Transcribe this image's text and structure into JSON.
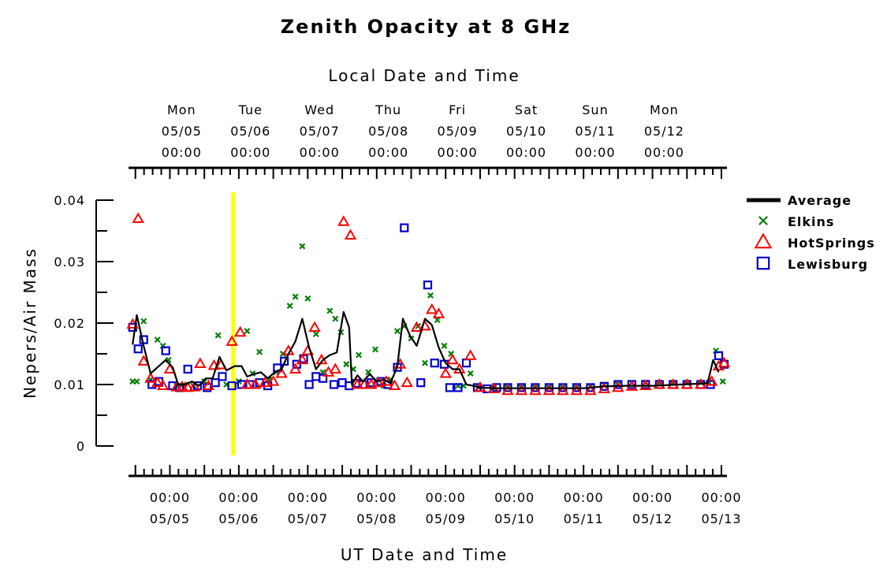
{
  "chart_data": {
    "type": "scatter",
    "title": "Zenith Opacity at 8 GHz",
    "xlabel_top": "Local Date and Time",
    "xlabel": "UT Date and Time",
    "ylabel": "Nepers/Air Mass",
    "ylim": [
      0,
      0.04
    ],
    "y_ticks": [
      {
        "value": 0,
        "label": "0"
      },
      {
        "value": 0.01,
        "label": "0.01"
      },
      {
        "value": 0.02,
        "label": "0.02"
      },
      {
        "value": 0.03,
        "label": "0.03"
      },
      {
        "value": 0.04,
        "label": "0.04"
      }
    ],
    "xlim_days": [
      4.4,
      13.08
    ],
    "x_ticks_bottom": [
      {
        "day": 5,
        "time": "00:00",
        "date": "05/05"
      },
      {
        "day": 6,
        "time": "00:00",
        "date": "05/06"
      },
      {
        "day": 7,
        "time": "00:00",
        "date": "05/07"
      },
      {
        "day": 8,
        "time": "00:00",
        "date": "05/08"
      },
      {
        "day": 9,
        "time": "00:00",
        "date": "05/09"
      },
      {
        "day": 10,
        "time": "00:00",
        "date": "05/10"
      },
      {
        "day": 11,
        "time": "00:00",
        "date": "05/11"
      },
      {
        "day": 12,
        "time": "00:00",
        "date": "05/12"
      },
      {
        "day": 13,
        "time": "00:00",
        "date": "05/13"
      }
    ],
    "x_ticks_top": [
      {
        "day": 5.17,
        "weekday": "Mon",
        "date": "05/05",
        "time": "00:00"
      },
      {
        "day": 6.17,
        "weekday": "Tue",
        "date": "05/06",
        "time": "00:00"
      },
      {
        "day": 7.17,
        "weekday": "Wed",
        "date": "05/07",
        "time": "00:00"
      },
      {
        "day": 8.17,
        "weekday": "Thu",
        "date": "05/08",
        "time": "00:00"
      },
      {
        "day": 9.17,
        "weekday": "Fri",
        "date": "05/09",
        "time": "00:00"
      },
      {
        "day": 10.17,
        "weekday": "Sat",
        "date": "05/10",
        "time": "00:00"
      },
      {
        "day": 11.17,
        "weekday": "Sun",
        "date": "05/11",
        "time": "00:00"
      },
      {
        "day": 12.17,
        "weekday": "Mon",
        "date": "05/12",
        "time": "00:00"
      }
    ],
    "marker_day": 5.92,
    "marker_color": "#ffff00",
    "legend_position": "right",
    "series": [
      {
        "name": "Average",
        "style": "line",
        "color": "#000000",
        "points": [
          [
            4.46,
            0.0165
          ],
          [
            4.52,
            0.0213
          ],
          [
            4.62,
            0.0163
          ],
          [
            4.72,
            0.0118
          ],
          [
            4.82,
            0.0128
          ],
          [
            4.94,
            0.014
          ],
          [
            5.04,
            0.0128
          ],
          [
            5.12,
            0.01
          ],
          [
            5.22,
            0.01
          ],
          [
            5.32,
            0.0105
          ],
          [
            5.42,
            0.0098
          ],
          [
            5.52,
            0.011
          ],
          [
            5.62,
            0.011
          ],
          [
            5.72,
            0.0145
          ],
          [
            5.82,
            0.0123
          ],
          [
            5.94,
            0.013
          ],
          [
            6.04,
            0.013
          ],
          [
            6.12,
            0.0113
          ],
          [
            6.22,
            0.0117
          ],
          [
            6.32,
            0.012
          ],
          [
            6.42,
            0.011
          ],
          [
            6.52,
            0.012
          ],
          [
            6.62,
            0.0125
          ],
          [
            6.72,
            0.015
          ],
          [
            6.82,
            0.017
          ],
          [
            6.92,
            0.0207
          ],
          [
            7.02,
            0.016
          ],
          [
            7.12,
            0.0125
          ],
          [
            7.22,
            0.014
          ],
          [
            7.32,
            0.0148
          ],
          [
            7.42,
            0.0152
          ],
          [
            7.52,
            0.0218
          ],
          [
            7.6,
            0.0193
          ],
          [
            7.64,
            0.01
          ],
          [
            7.72,
            0.0115
          ],
          [
            7.8,
            0.0105
          ],
          [
            7.9,
            0.0117
          ],
          [
            8.0,
            0.0105
          ],
          [
            8.1,
            0.0108
          ],
          [
            8.2,
            0.0102
          ],
          [
            8.3,
            0.013
          ],
          [
            8.38,
            0.0207
          ],
          [
            8.48,
            0.018
          ],
          [
            8.58,
            0.0163
          ],
          [
            8.7,
            0.0207
          ],
          [
            8.8,
            0.0197
          ],
          [
            8.9,
            0.016
          ],
          [
            9.0,
            0.0135
          ],
          [
            9.1,
            0.0125
          ],
          [
            9.2,
            0.0125
          ],
          [
            9.3,
            0.01
          ],
          [
            9.4,
            0.0098
          ],
          [
            9.5,
            0.0095
          ],
          [
            9.7,
            0.0094
          ],
          [
            10.0,
            0.0094
          ],
          [
            10.5,
            0.0094
          ],
          [
            11.0,
            0.0094
          ],
          [
            11.3,
            0.0097
          ],
          [
            11.6,
            0.0098
          ],
          [
            12.0,
            0.0098
          ],
          [
            12.4,
            0.01
          ],
          [
            12.8,
            0.0102
          ],
          [
            12.88,
            0.014
          ],
          [
            12.96,
            0.012
          ]
        ]
      },
      {
        "name": "Elkins",
        "style": "x",
        "color": "#008000",
        "points": [
          [
            4.46,
            0.0105
          ],
          [
            4.52,
            0.0105
          ],
          [
            4.62,
            0.0203
          ],
          [
            4.72,
            0.0108
          ],
          [
            4.82,
            0.0173
          ],
          [
            4.9,
            0.0163
          ],
          [
            4.98,
            0.014
          ],
          [
            5.1,
            0.0098
          ],
          [
            5.2,
            0.01
          ],
          [
            5.34,
            0.0098
          ],
          [
            5.5,
            0.0105
          ],
          [
            5.7,
            0.018
          ],
          [
            5.82,
            0.01
          ],
          [
            6.0,
            0.0105
          ],
          [
            6.12,
            0.0187
          ],
          [
            6.2,
            0.0118
          ],
          [
            6.3,
            0.0153
          ],
          [
            6.44,
            0.0108
          ],
          [
            6.54,
            0.012
          ],
          [
            6.64,
            0.015
          ],
          [
            6.74,
            0.0228
          ],
          [
            6.82,
            0.0243
          ],
          [
            6.92,
            0.0325
          ],
          [
            7.0,
            0.024
          ],
          [
            7.12,
            0.0182
          ],
          [
            7.22,
            0.012
          ],
          [
            7.32,
            0.022
          ],
          [
            7.4,
            0.0207
          ],
          [
            7.48,
            0.0185
          ],
          [
            7.56,
            0.0133
          ],
          [
            7.66,
            0.0125
          ],
          [
            7.74,
            0.0148
          ],
          [
            7.88,
            0.012
          ],
          [
            7.98,
            0.0157
          ],
          [
            8.1,
            0.0098
          ],
          [
            8.2,
            0.0108
          ],
          [
            8.3,
            0.0187
          ],
          [
            8.4,
            0.0195
          ],
          [
            8.5,
            0.0175
          ],
          [
            8.6,
            0.0195
          ],
          [
            8.7,
            0.0135
          ],
          [
            8.78,
            0.0245
          ],
          [
            8.88,
            0.0205
          ],
          [
            8.98,
            0.0163
          ],
          [
            9.08,
            0.015
          ],
          [
            9.18,
            0.0098
          ],
          [
            9.26,
            0.0098
          ],
          [
            9.36,
            0.0118
          ],
          [
            9.48,
            0.0095
          ],
          [
            9.7,
            0.0095
          ],
          [
            9.9,
            0.0095
          ],
          [
            10.1,
            0.0095
          ],
          [
            10.3,
            0.0095
          ],
          [
            10.5,
            0.0095
          ],
          [
            10.7,
            0.0095
          ],
          [
            10.9,
            0.0095
          ],
          [
            11.1,
            0.0097
          ],
          [
            11.3,
            0.01
          ],
          [
            11.5,
            0.01
          ],
          [
            11.7,
            0.0103
          ],
          [
            11.9,
            0.0103
          ],
          [
            12.1,
            0.0103
          ],
          [
            12.3,
            0.0103
          ],
          [
            12.5,
            0.0103
          ],
          [
            12.7,
            0.0103
          ],
          [
            12.82,
            0.0103
          ],
          [
            12.92,
            0.0155
          ],
          [
            13.02,
            0.0105
          ]
        ]
      },
      {
        "name": "HotSprings",
        "style": "triangle",
        "color": "#ff0000",
        "points": [
          [
            4.46,
            0.0198
          ],
          [
            4.54,
            0.037
          ],
          [
            4.62,
            0.0138
          ],
          [
            4.72,
            0.011
          ],
          [
            4.82,
            0.0103
          ],
          [
            4.9,
            0.0098
          ],
          [
            5.0,
            0.0125
          ],
          [
            5.1,
            0.0096
          ],
          [
            5.18,
            0.0096
          ],
          [
            5.26,
            0.0095
          ],
          [
            5.36,
            0.0096
          ],
          [
            5.44,
            0.0134
          ],
          [
            5.56,
            0.0098
          ],
          [
            5.64,
            0.0131
          ],
          [
            5.74,
            0.0132
          ],
          [
            5.9,
            0.017
          ],
          [
            6.02,
            0.0185
          ],
          [
            6.12,
            0.01
          ],
          [
            6.24,
            0.01
          ],
          [
            6.38,
            0.0103
          ],
          [
            6.5,
            0.0105
          ],
          [
            6.62,
            0.0118
          ],
          [
            6.72,
            0.0155
          ],
          [
            6.82,
            0.0125
          ],
          [
            6.92,
            0.014
          ],
          [
            7.0,
            0.0155
          ],
          [
            7.1,
            0.0193
          ],
          [
            7.2,
            0.014
          ],
          [
            7.3,
            0.012
          ],
          [
            7.4,
            0.0125
          ],
          [
            7.52,
            0.0365
          ],
          [
            7.62,
            0.0343
          ],
          [
            7.72,
            0.01
          ],
          [
            7.82,
            0.01
          ],
          [
            7.92,
            0.01
          ],
          [
            8.02,
            0.0103
          ],
          [
            8.14,
            0.0105
          ],
          [
            8.26,
            0.0098
          ],
          [
            8.34,
            0.0133
          ],
          [
            8.44,
            0.0103
          ],
          [
            8.58,
            0.0193
          ],
          [
            8.7,
            0.0195
          ],
          [
            8.8,
            0.0222
          ],
          [
            8.9,
            0.0215
          ],
          [
            9.0,
            0.0118
          ],
          [
            9.1,
            0.014
          ],
          [
            9.2,
            0.0125
          ],
          [
            9.36,
            0.0147
          ],
          [
            9.5,
            0.0095
          ],
          [
            9.7,
            0.0093
          ],
          [
            9.9,
            0.009
          ],
          [
            10.1,
            0.009
          ],
          [
            10.3,
            0.009
          ],
          [
            10.5,
            0.009
          ],
          [
            10.7,
            0.009
          ],
          [
            10.9,
            0.009
          ],
          [
            11.1,
            0.009
          ],
          [
            11.3,
            0.0093
          ],
          [
            11.5,
            0.0095
          ],
          [
            11.7,
            0.0097
          ],
          [
            11.9,
            0.0098
          ],
          [
            12.1,
            0.01
          ],
          [
            12.3,
            0.01
          ],
          [
            12.5,
            0.01
          ],
          [
            12.7,
            0.01
          ],
          [
            12.86,
            0.0105
          ],
          [
            12.96,
            0.013
          ],
          [
            13.04,
            0.0135
          ]
        ]
      },
      {
        "name": "Lewisburg",
        "style": "square",
        "color": "#0000cc",
        "points": [
          [
            4.46,
            0.0193
          ],
          [
            4.54,
            0.0158
          ],
          [
            4.62,
            0.0173
          ],
          [
            4.74,
            0.01
          ],
          [
            4.84,
            0.0105
          ],
          [
            4.94,
            0.0155
          ],
          [
            5.04,
            0.0098
          ],
          [
            5.14,
            0.0095
          ],
          [
            5.26,
            0.0125
          ],
          [
            5.4,
            0.0098
          ],
          [
            5.54,
            0.0095
          ],
          [
            5.66,
            0.0103
          ],
          [
            5.76,
            0.0113
          ],
          [
            5.9,
            0.0098
          ],
          [
            6.04,
            0.01
          ],
          [
            6.16,
            0.01
          ],
          [
            6.3,
            0.0103
          ],
          [
            6.42,
            0.0098
          ],
          [
            6.56,
            0.0127
          ],
          [
            6.66,
            0.0138
          ],
          [
            6.84,
            0.0133
          ],
          [
            6.94,
            0.0142
          ],
          [
            7.02,
            0.01
          ],
          [
            7.12,
            0.0113
          ],
          [
            7.22,
            0.011
          ],
          [
            7.38,
            0.01
          ],
          [
            7.5,
            0.0103
          ],
          [
            7.6,
            0.0098
          ],
          [
            7.7,
            0.0102
          ],
          [
            7.8,
            0.01
          ],
          [
            7.92,
            0.0103
          ],
          [
            8.06,
            0.0105
          ],
          [
            8.16,
            0.01
          ],
          [
            8.3,
            0.0128
          ],
          [
            8.4,
            0.0355
          ],
          [
            8.64,
            0.0103
          ],
          [
            8.74,
            0.0262
          ],
          [
            8.84,
            0.0135
          ],
          [
            8.98,
            0.0133
          ],
          [
            9.06,
            0.0095
          ],
          [
            9.18,
            0.0095
          ],
          [
            9.3,
            0.0135
          ],
          [
            9.46,
            0.0095
          ],
          [
            9.6,
            0.0093
          ],
          [
            9.74,
            0.0095
          ],
          [
            9.9,
            0.0095
          ],
          [
            10.1,
            0.0095
          ],
          [
            10.3,
            0.0095
          ],
          [
            10.5,
            0.0095
          ],
          [
            10.7,
            0.0095
          ],
          [
            10.9,
            0.0095
          ],
          [
            11.1,
            0.0095
          ],
          [
            11.3,
            0.0097
          ],
          [
            11.5,
            0.01
          ],
          [
            11.7,
            0.01
          ],
          [
            11.9,
            0.01
          ],
          [
            12.1,
            0.01
          ],
          [
            12.3,
            0.01
          ],
          [
            12.5,
            0.01
          ],
          [
            12.7,
            0.01
          ],
          [
            12.84,
            0.01
          ],
          [
            12.96,
            0.0147
          ],
          [
            13.04,
            0.0133
          ]
        ]
      }
    ]
  }
}
